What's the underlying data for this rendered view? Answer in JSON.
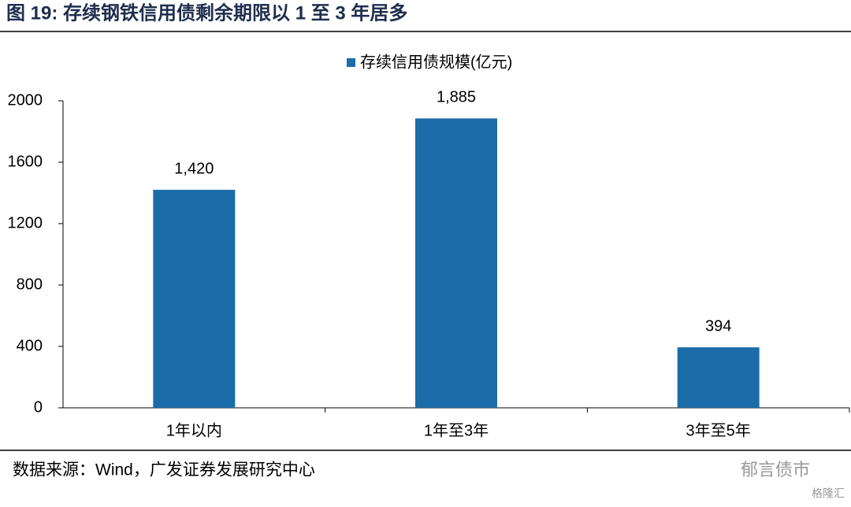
{
  "chart_data": {
    "type": "bar",
    "title": "图 19:  存续钢铁信用债剩余期限以 1 至 3 年居多",
    "categories": [
      "1年以内",
      "1年至3年",
      "3年至5年"
    ],
    "series": [
      {
        "name": "存续信用债规模(亿元)",
        "color": "#1b6ca8",
        "values": [
          1420,
          1885,
          394
        ],
        "value_labels": [
          "1,420",
          "1,885",
          "394"
        ]
      }
    ],
    "ylim": [
      0,
      2000
    ],
    "yticks": [
      0,
      400,
      800,
      1200,
      1600,
      2000
    ],
    "legend": "top",
    "source": "数据来源：Wind，广发证券发展研究中心",
    "watermark": [
      "郁言债市",
      "格隆汇"
    ]
  }
}
